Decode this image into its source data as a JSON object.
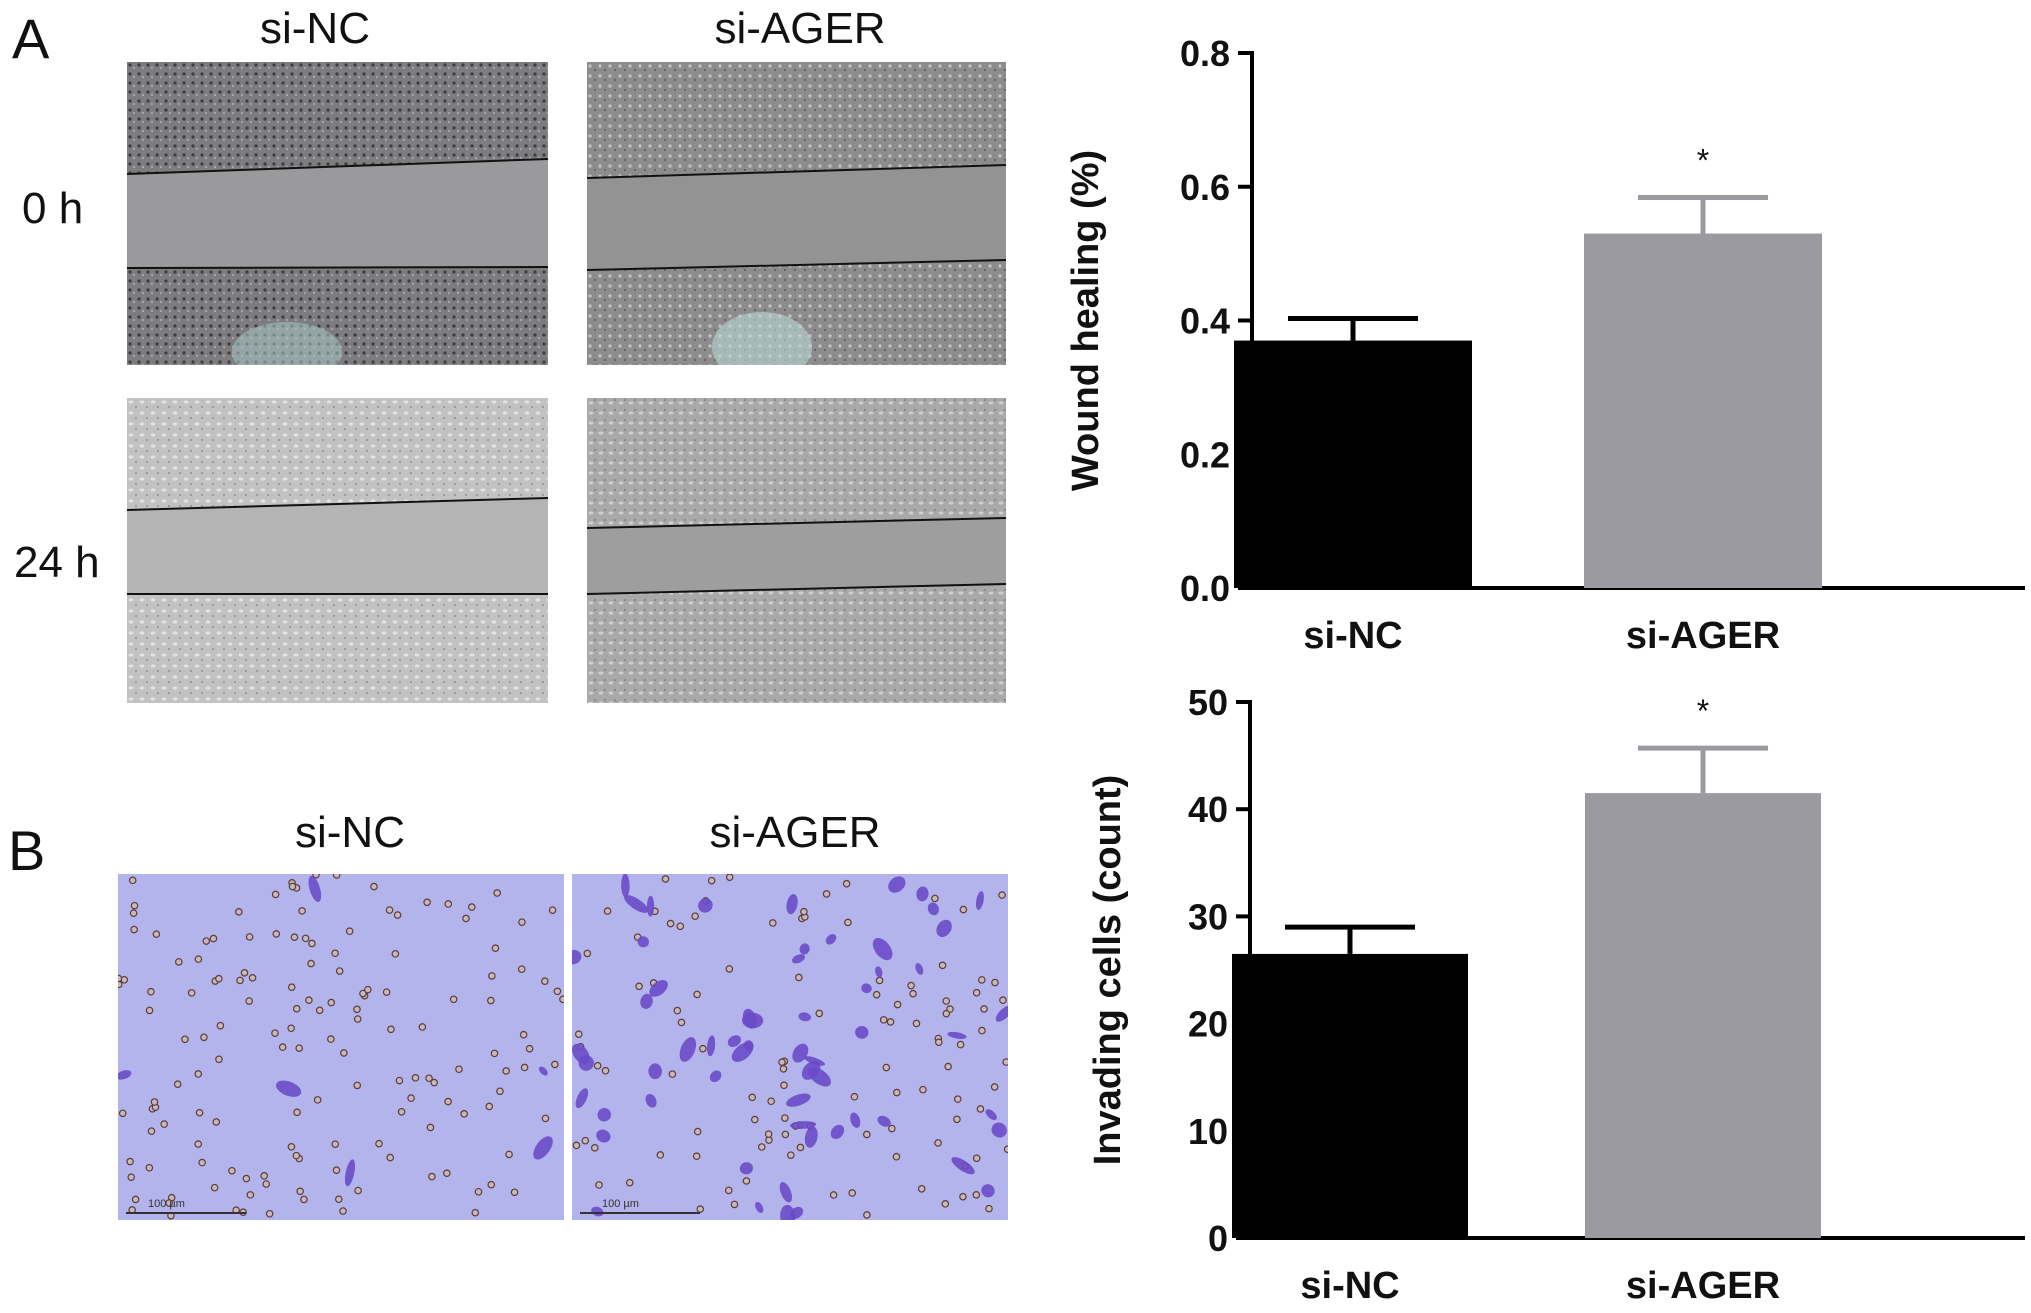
{
  "panel_a": {
    "letter": "A",
    "columns": [
      "si-NC",
      "si-AGER"
    ],
    "rows": [
      "0 h",
      "24 h"
    ]
  },
  "panel_b": {
    "letter": "B",
    "columns": [
      "si-NC",
      "si-AGER"
    ],
    "scale_bar": "100 µm"
  },
  "colors": {
    "si_nc_bar": "#000000",
    "si_ager_bar": "#9a9aa0",
    "transwell_bg": "#b4b4ec",
    "stain": "#6a4bc8"
  },
  "chart_data": [
    {
      "type": "bar",
      "categories": [
        "si-NC",
        "si-AGER"
      ],
      "values": [
        0.37,
        0.53
      ],
      "errors": [
        0.033,
        0.054
      ],
      "annotations": [
        "",
        "*"
      ],
      "ylabel": "Wound healing (%)",
      "ylim": [
        0.0,
        0.8
      ],
      "yticks": [
        0.0,
        0.2,
        0.4,
        0.6,
        0.8
      ],
      "ytick_labels": [
        "0.0",
        "0.2",
        "0.4",
        "0.6",
        "0.8"
      ],
      "grid": false
    },
    {
      "type": "bar",
      "categories": [
        "si-NC",
        "si-AGER"
      ],
      "values": [
        26.5,
        41.5
      ],
      "errors": [
        2.5,
        4.2
      ],
      "annotations": [
        "",
        "*"
      ],
      "ylabel": "Invading cells (count)",
      "ylim": [
        0,
        50
      ],
      "yticks": [
        0,
        10,
        20,
        30,
        40,
        50
      ],
      "ytick_labels": [
        "0",
        "10",
        "20",
        "30",
        "40",
        "50"
      ],
      "grid": false
    }
  ]
}
